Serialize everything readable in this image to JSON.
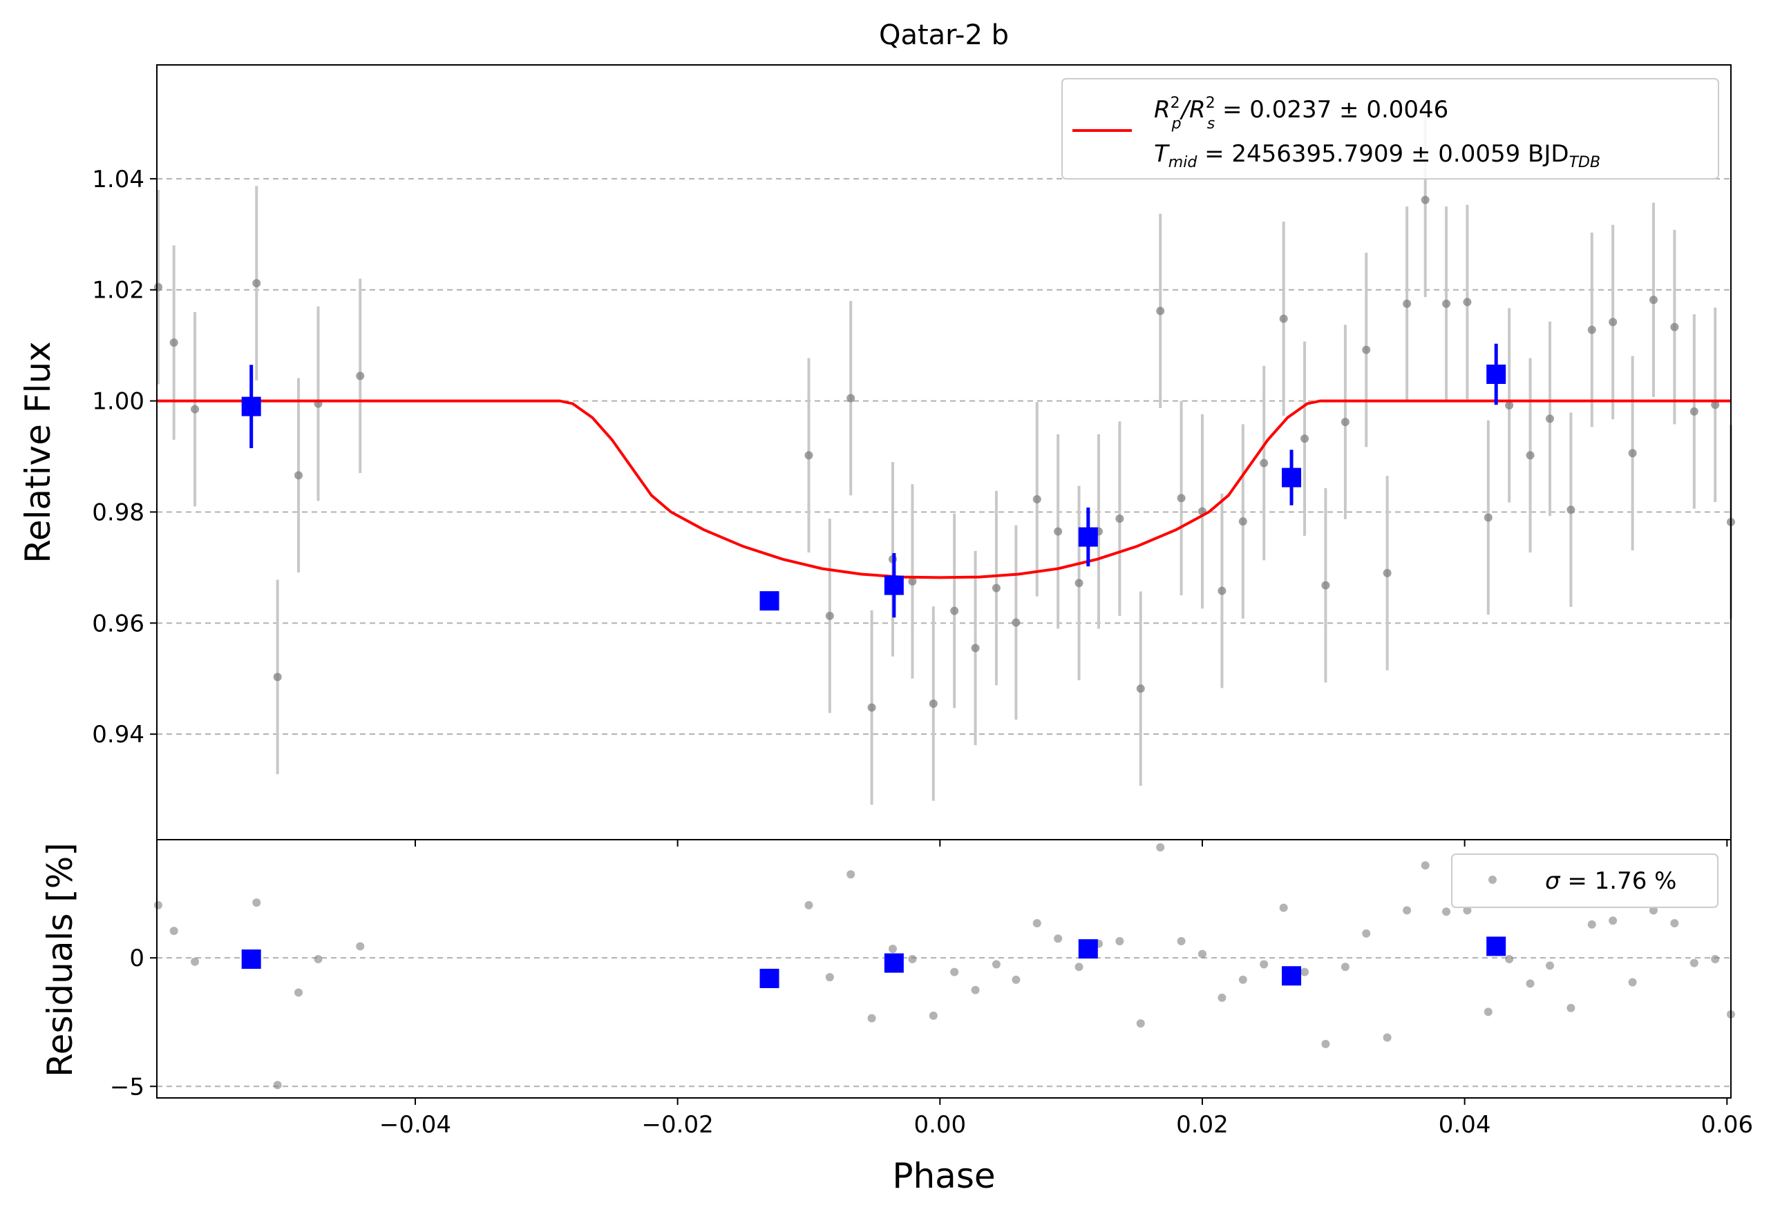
{
  "title": "Qatar-2 b",
  "colors": {
    "raw": "#808080",
    "raw_err": "#c8c8c8",
    "binned": "#0000ff",
    "model": "#ff0000",
    "grid": "#b0b0b0"
  },
  "chart_data": [
    {
      "panel": "main",
      "type": "scatter",
      "xlim": [
        -0.0597,
        0.0603
      ],
      "ylim": [
        0.921,
        1.0605
      ],
      "ylabel": "Relative Flux",
      "yticks": [
        0.94,
        0.96,
        0.98,
        1.0,
        1.02,
        1.04
      ],
      "ytick_labels": [
        "0.94",
        "0.96",
        "0.98",
        "1.00",
        "1.02",
        "1.04"
      ],
      "grid": "horizontal dashed",
      "legend": {
        "placement": "top-right",
        "line1": {
          "prefix": "R",
          "sup1": "2",
          "sub1": "p",
          "mid": "/R",
          "sup2": "2",
          "sub2": "s",
          "suffix": " = 0.0237 ± 0.0046"
        },
        "line2": {
          "prefix": "T",
          "sub1": "mid",
          "suffix": " = 2456395.7909 ± 0.0059 BJD",
          "sub2": "TDB"
        }
      },
      "raw": {
        "x": [
          -0.0596,
          -0.0584,
          -0.0568,
          -0.0521,
          -0.0505,
          -0.0489,
          -0.0474,
          -0.0442,
          -0.01,
          -0.0084,
          -0.0068,
          -0.0052,
          -0.0036,
          -0.0021,
          -0.0005,
          0.0011,
          0.0027,
          0.0043,
          0.0058,
          0.0074,
          0.009,
          0.0106,
          0.0121,
          0.0137,
          0.0153,
          0.0168,
          0.0184,
          0.02,
          0.0215,
          0.0231,
          0.0247,
          0.0262,
          0.0278,
          0.0294,
          0.0309,
          0.0325,
          0.0341,
          0.0356,
          0.037,
          0.0386,
          0.0402,
          0.0418,
          0.0434,
          0.045,
          0.0465,
          0.0481,
          0.0497,
          0.0513,
          0.0528,
          0.0544,
          0.056,
          0.0575,
          0.0591,
          0.0603
        ],
        "y": [
          1.0205,
          1.0105,
          0.9985,
          1.0212,
          0.9503,
          0.9866,
          0.9995,
          1.0045,
          0.9902,
          0.9613,
          1.0005,
          0.9448,
          0.9715,
          0.9675,
          0.9455,
          0.9622,
          0.9555,
          0.9663,
          0.9601,
          0.9823,
          0.9765,
          0.9672,
          0.9765,
          0.9788,
          0.9482,
          1.0162,
          0.9825,
          0.9801,
          0.9658,
          0.9783,
          0.9888,
          1.0148,
          0.9932,
          0.9668,
          0.9962,
          1.0092,
          0.969,
          1.0175,
          1.0362,
          1.0175,
          1.0178,
          0.979,
          0.9992,
          0.9902,
          0.9968,
          0.9804,
          1.0128,
          1.0142,
          0.9906,
          1.0182,
          1.0133,
          0.9981,
          0.9993,
          0.9782
        ],
        "err": 0.0175
      },
      "binned": {
        "x": [
          -0.0525,
          -0.013,
          -0.0035,
          0.0113,
          0.0268,
          0.0424
        ],
        "y": [
          0.999,
          0.964,
          0.9668,
          0.9755,
          0.9862,
          1.0048
        ],
        "err": [
          0.0075,
          0.0,
          0.0058,
          0.0053,
          0.005,
          0.0055
        ]
      },
      "model": {
        "x": [
          -0.0597,
          -0.029,
          -0.028,
          -0.0265,
          -0.025,
          -0.0235,
          -0.022,
          -0.0205,
          -0.018,
          -0.015,
          -0.012,
          -0.009,
          -0.006,
          -0.003,
          0.0,
          0.003,
          0.006,
          0.009,
          0.012,
          0.015,
          0.018,
          0.0205,
          0.022,
          0.0235,
          0.025,
          0.0265,
          0.028,
          0.029,
          0.0603
        ],
        "y": [
          1.0,
          1.0,
          0.9995,
          0.997,
          0.993,
          0.988,
          0.983,
          0.98,
          0.9768,
          0.9738,
          0.9715,
          0.9698,
          0.9688,
          0.9683,
          0.9682,
          0.9683,
          0.9688,
          0.9698,
          0.9715,
          0.9738,
          0.9768,
          0.98,
          0.983,
          0.988,
          0.993,
          0.997,
          0.9995,
          1.0,
          1.0
        ]
      }
    },
    {
      "panel": "residuals",
      "type": "scatter",
      "xlim": [
        -0.0597,
        0.0603
      ],
      "ylim": [
        -5.45,
        4.6
      ],
      "xlabel": "Phase",
      "ylabel": "Residuals [%]",
      "yticks": [
        -5,
        0
      ],
      "ytick_labels": [
        "−5",
        "0"
      ],
      "xticks": [
        -0.04,
        -0.02,
        0.0,
        0.02,
        0.04,
        0.06
      ],
      "xtick_labels": [
        "−0.04",
        "−0.02",
        "0.00",
        "0.02",
        "0.04",
        "0.06"
      ],
      "grid": "horizontal dashed",
      "legend": {
        "placement": "top-right",
        "prefix": "σ",
        "suffix": " = 1.76 %"
      },
      "raw": {
        "x": [
          -0.0596,
          -0.0584,
          -0.0568,
          -0.0521,
          -0.0505,
          -0.0489,
          -0.0474,
          -0.0442,
          -0.01,
          -0.0084,
          -0.0068,
          -0.0052,
          -0.0036,
          -0.0021,
          -0.0005,
          0.0011,
          0.0027,
          0.0043,
          0.0058,
          0.0074,
          0.009,
          0.0106,
          0.0121,
          0.0137,
          0.0153,
          0.0168,
          0.0184,
          0.02,
          0.0215,
          0.0231,
          0.0247,
          0.0262,
          0.0278,
          0.0294,
          0.0309,
          0.0325,
          0.0341,
          0.0356,
          0.037,
          0.0386,
          0.0402,
          0.0418,
          0.0434,
          0.045,
          0.0465,
          0.0481,
          0.0497,
          0.0513,
          0.0528,
          0.0544,
          0.056,
          0.0575,
          0.0591,
          0.0603
        ],
        "y": [
          2.05,
          1.05,
          -0.15,
          2.15,
          -4.95,
          -1.35,
          -0.05,
          0.45,
          2.05,
          -0.75,
          3.25,
          -2.35,
          0.35,
          -0.05,
          -2.25,
          -0.55,
          -1.25,
          -0.25,
          -0.85,
          1.35,
          0.75,
          -0.35,
          0.55,
          0.65,
          -2.55,
          4.3,
          0.65,
          0.15,
          -1.55,
          -0.85,
          -0.25,
          1.95,
          -0.55,
          -3.35,
          -0.35,
          0.95,
          -3.1,
          1.85,
          3.6,
          1.8,
          1.85,
          -2.1,
          -0.05,
          -1.0,
          -0.3,
          -1.95,
          1.3,
          1.45,
          -0.95,
          1.85,
          1.35,
          -0.2,
          -0.05,
          -2.2
        ]
      },
      "binned": {
        "x": [
          -0.0525,
          -0.013,
          -0.0035,
          0.0113,
          0.0268,
          0.0424
        ],
        "y": [
          -0.05,
          -0.8,
          -0.2,
          0.35,
          -0.7,
          0.45
        ]
      }
    }
  ]
}
